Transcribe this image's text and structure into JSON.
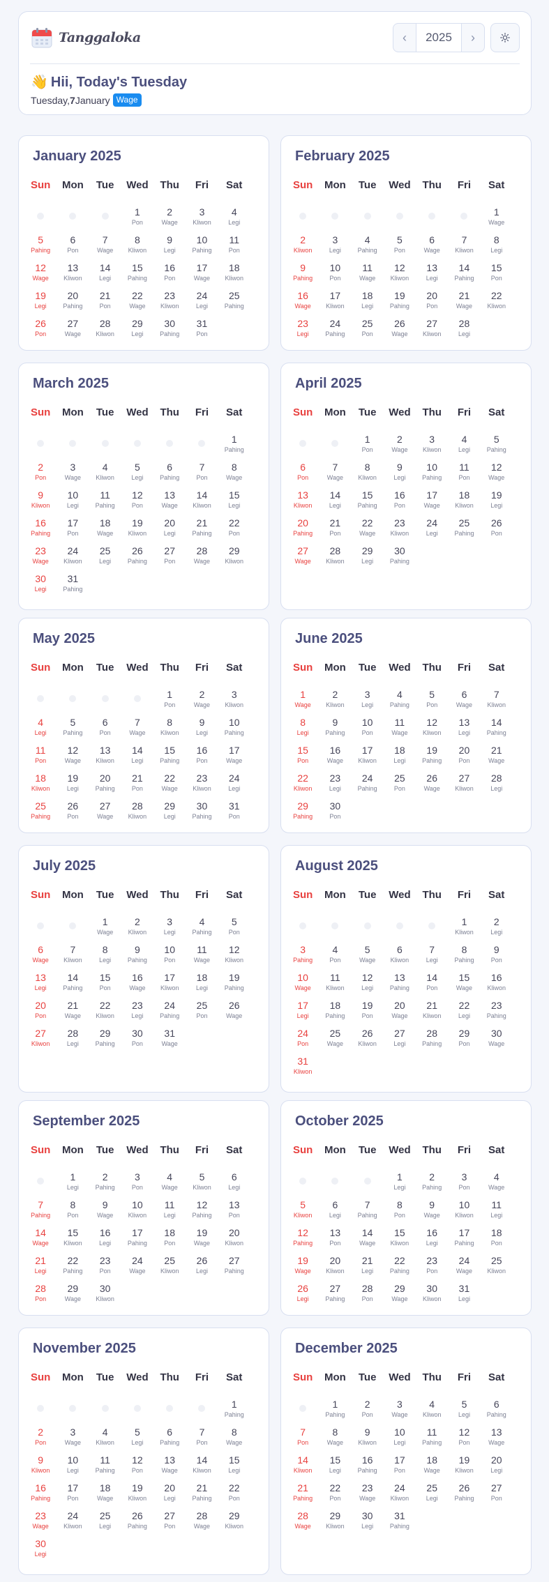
{
  "app": {
    "name": "Tanggaloka",
    "logo_icon": "calendar-icon",
    "year": "2025",
    "prev_icon": "chevron-left-icon",
    "next_icon": "chevron-right-icon",
    "theme_icon": "sun-icon",
    "colors": {
      "accent": "#4b4f7d",
      "sunday": "#e8413f",
      "badge": "#1a8cf0",
      "border": "#d8dff0"
    }
  },
  "greeting": {
    "wave": "👋",
    "text": "Hii, Today's Tuesday",
    "date_prefix": "Tuesday, ",
    "date_day": "7",
    "date_suffix": " January",
    "pasaran": "Wage"
  },
  "weekdays": [
    "Sun",
    "Mon",
    "Tue",
    "Wed",
    "Thu",
    "Fri",
    "Sat"
  ],
  "months": [
    {
      "title": "January 2025",
      "offset": 3,
      "days": 31,
      "pasaran_start": 0
    },
    {
      "title": "February 2025",
      "offset": 6,
      "days": 28,
      "pasaran_start": 1
    },
    {
      "title": "March 2025",
      "offset": 6,
      "days": 31,
      "pasaran_start": 4
    },
    {
      "title": "April 2025",
      "offset": 2,
      "days": 30,
      "pasaran_start": 0
    },
    {
      "title": "May 2025",
      "offset": 4,
      "days": 31,
      "pasaran_start": 0
    },
    {
      "title": "June 2025",
      "offset": 0,
      "days": 30,
      "pasaran_start": 1
    },
    {
      "title": "July 2025",
      "offset": 2,
      "days": 31,
      "pasaran_start": 1
    },
    {
      "title": "August 2025",
      "offset": 5,
      "days": 31,
      "pasaran_start": 2
    },
    {
      "title": "September 2025",
      "offset": 1,
      "days": 30,
      "pasaran_start": 3
    },
    {
      "title": "October 2025",
      "offset": 3,
      "days": 31,
      "pasaran_start": 3
    },
    {
      "title": "November 2025",
      "offset": 6,
      "days": 30,
      "pasaran_start": 4
    },
    {
      "title": "December 2025",
      "offset": 1,
      "days": 31,
      "pasaran_start": 4
    }
  ],
  "pasaran_cycle": [
    "Pon",
    "Wage",
    "Kliwon",
    "Legi",
    "Pahing"
  ]
}
